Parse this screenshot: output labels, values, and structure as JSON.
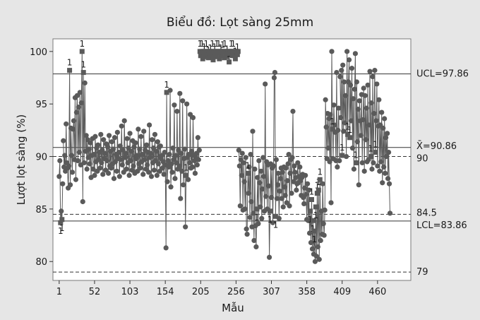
{
  "chart_data": {
    "type": "scatter",
    "title": "Biểu đồ: Lọt sàng 25mm",
    "xlabel": "Mẫu",
    "ylabel": "Lượt lọt sàng (%)",
    "xlim": [
      -8,
      508
    ],
    "ylim": [
      78.2,
      101.2
    ],
    "x_ticks": [
      1,
      52,
      103,
      154,
      205,
      256,
      307,
      358,
      409,
      460
    ],
    "y_ticks": [
      80,
      85,
      90,
      95,
      100
    ],
    "reference_lines": [
      {
        "value": 97.86,
        "label": "UCL=97.86",
        "style": "solid"
      },
      {
        "value": 90.86,
        "label": "X̄=90.86",
        "style": "solid"
      },
      {
        "value": 90,
        "label": "90",
        "style": "dashed"
      },
      {
        "value": 84.5,
        "label": "84.5",
        "style": "dashed"
      },
      {
        "value": 83.86,
        "label": "LCL=83.86",
        "style": "solid"
      },
      {
        "value": 79,
        "label": "79",
        "style": "dashed"
      }
    ],
    "out_of_control_marker": "1",
    "series_color": "#5a5a5a",
    "segments": [
      {
        "x_from": 1,
        "x_to": 6,
        "values": [
          88.1,
          89.6,
          83.7,
          84.8,
          84.0,
          87.4
        ],
        "flagged": [
          2,
          4
        ]
      },
      {
        "x_from": 7,
        "x_to": 50,
        "values": [
          91.5,
          89.0,
          90.1,
          88.6,
          93.1,
          89.4,
          88.9,
          87.0,
          89.1,
          98.2,
          87.3,
          92.7,
          90.1,
          88.5,
          92.6,
          93.4,
          89.7,
          95.6,
          87.8,
          94.2,
          95.8,
          89.6,
          94.7,
          90.4,
          96.1,
          89.2,
          95.1,
          100.0,
          85.7,
          98.0,
          89.4,
          97.0,
          90.5,
          92.0,
          88.8,
          91.6,
          89.9,
          90.7,
          89.3,
          91.3,
          88.0,
          90.1,
          91.7,
          88.8
        ],
        "flagged": [
          9,
          27,
          29
        ]
      },
      {
        "x_from": 51,
        "x_to": 150,
        "values": [
          90.2,
          88.2,
          91.9,
          89.5,
          90.8,
          88.6,
          91.1,
          89.7,
          90.4,
          88.9,
          92.1,
          89.4,
          90.6,
          88.3,
          91.6,
          89.8,
          90.3,
          88.7,
          91.2,
          89.6,
          90.9,
          88.4,
          92.0,
          89.1,
          90.5,
          88.9,
          91.4,
          89.3,
          90.7,
          87.9,
          91.8,
          89.5,
          90.2,
          88.6,
          92.3,
          89.8,
          90.4,
          88.1,
          91.0,
          89.7,
          92.9,
          89.2,
          90.6,
          88.5,
          93.4,
          89.9,
          90.3,
          88.8,
          91.7,
          89.4,
          90.8,
          88.2,
          92.2,
          89.6,
          90.5,
          88.7,
          91.5,
          89.1,
          90.9,
          88.4,
          91.3,
          89.8,
          90.1,
          88.6,
          92.6,
          89.3,
          90.7,
          88.9,
          91.9,
          89.5,
          90.2,
          88.3,
          92.4,
          89.7,
          90.6,
          88.8,
          91.1,
          89.2,
          90.4,
          88.5,
          93.0,
          89.9,
          90.3,
          88.1,
          91.6,
          89.4,
          90.8,
          88.7,
          92.1,
          89.6,
          90.5,
          88.2,
          91.4,
          89.3,
          90.9,
          88.6,
          91.0,
          89.8,
          90.1,
          88.9
        ],
        "flagged": []
      },
      {
        "x_from": 151,
        "x_to": 203,
        "values": [
          89.5,
          88.3,
          90.4,
          89.2,
          81.3,
          96.1,
          87.6,
          89.6,
          89.0,
          90.2,
          96.3,
          87.1,
          89.3,
          88.5,
          90.8,
          89.7,
          94.9,
          87.9,
          90.1,
          89.4,
          94.3,
          88.8,
          90.6,
          89.1,
          96.0,
          86.0,
          90.3,
          88.6,
          95.3,
          87.3,
          89.8,
          90.7,
          83.3,
          88.2,
          95.0,
          89.9,
          87.8,
          90.2,
          89.4,
          94.0,
          88.9,
          90.5,
          89.0,
          93.7,
          90.1,
          89.6,
          88.4,
          89.9,
          90.3,
          89.2,
          91.8,
          89.7,
          90.6
        ],
        "flagged": [
          5,
          33
        ]
      },
      {
        "x_from": 204,
        "x_to": 259,
        "values": [
          100.0,
          99.6,
          99.9,
          100.0,
          99.3,
          100.0,
          99.7,
          100.0,
          99.5,
          100.0,
          99.8,
          100.0,
          99.4,
          100.0,
          100.0,
          99.6,
          100.0,
          99.9,
          100.0,
          99.2,
          100.0,
          99.7,
          100.0,
          99.5,
          100.0,
          100.0,
          99.8,
          100.0,
          99.3,
          100.0,
          99.6,
          100.0,
          100.0,
          99.9,
          100.0,
          99.4,
          100.0,
          99.7,
          100.0,
          99.5,
          100.0,
          100.0,
          99.0,
          100.0,
          99.8,
          100.0,
          100.0,
          99.6,
          100.0,
          99.9,
          100.0,
          99.3,
          100.0,
          100.0,
          99.7,
          100.0
        ],
        "flagged": "all"
      },
      {
        "x_from": 260,
        "x_to": 330,
        "values": [
          90.6,
          89.1,
          85.3,
          89.7,
          88.2,
          90.3,
          84.9,
          89.4,
          87.6,
          85.0,
          89.9,
          83.1,
          82.6,
          88.4,
          86.5,
          89.0,
          84.2,
          90.2,
          85.7,
          83.3,
          92.4,
          84.6,
          82.0,
          88.8,
          83.4,
          81.4,
          85.0,
          88.0,
          83.6,
          89.6,
          87.5,
          85.2,
          88.6,
          84.1,
          86.9,
          89.9,
          88.1,
          84.8,
          96.9,
          86.2,
          89.5,
          85.0,
          89.2,
          87.2,
          80.4,
          84.8,
          89.3,
          86.1,
          88.9,
          83.7,
          89.1,
          97.5,
          98.0,
          84.3,
          89.7,
          86.0,
          87.3,
          88.4,
          84.1,
          86.7,
          87.9,
          88.9,
          86.0,
          88.5,
          85.2,
          89.0,
          87.1,
          86.3,
          88.9,
          85.6,
          87.7
        ],
        "flagged": [
          13,
          26,
          45,
          53
        ]
      },
      {
        "x_from": 331,
        "x_to": 405,
        "values": [
          89.3,
          90.2,
          85.3,
          88.4,
          89.7,
          86.5,
          89.9,
          94.3,
          87.6,
          89.1,
          88.5,
          88.0,
          86.8,
          87.4,
          89.4,
          87.5,
          88.1,
          89.0,
          87.7,
          86.3,
          88.0,
          88.3,
          86.1,
          85.5,
          87.0,
          88.2,
          86.4,
          84.0,
          87.4,
          83.9,
          86.8,
          82.7,
          84.8,
          81.8,
          85.9,
          81.2,
          83.9,
          80.7,
          82.9,
          80.0,
          85.2,
          80.5,
          86.5,
          81.4,
          86.8,
          80.2,
          87.8,
          82.0,
          84.8,
          82.6,
          87.4,
          83.6,
          82.5,
          84.9,
          95.4,
          92.8,
          89.8,
          94.1,
          90.8,
          93.6,
          89.5,
          94.0,
          85.6,
          100.0,
          92.6,
          89.8,
          94.9,
          93.0,
          92.3,
          89.6,
          98.0,
          89.0,
          92.5,
          94.6,
          89.6
        ],
        "flagged": [
          32,
          34,
          36,
          38,
          40,
          42,
          44,
          46,
          64
        ]
      },
      {
        "x_from": 406,
        "x_to": 478,
        "values": [
          97.6,
          93.7,
          98.2,
          90.1,
          98.7,
          92.4,
          97.1,
          93.2,
          95.8,
          90.0,
          100.0,
          92.1,
          97.1,
          99.2,
          91.8,
          96.8,
          93.4,
          98.4,
          90.8,
          95.5,
          88.8,
          96.4,
          99.8,
          89.4,
          97.1,
          91.4,
          94.5,
          87.3,
          95.3,
          93.4,
          92.0,
          95.9,
          89.4,
          93.5,
          96.5,
          88.6,
          95.8,
          91.6,
          94.6,
          89.5,
          96.8,
          89.7,
          93.0,
          98.1,
          90.0,
          95.1,
          88.8,
          97.6,
          89.4,
          94.1,
          98.2,
          90.4,
          93.4,
          96.9,
          89.1,
          92.9,
          95.4,
          88.6,
          93.0,
          89.5,
          94.2,
          87.5,
          92.7,
          89.0,
          93.6,
          88.4,
          91.8,
          90.0,
          92.2,
          87.9,
          90.4,
          87.4,
          84.6
        ],
        "flagged": [
          3,
          11,
          14,
          23,
          44,
          51
        ]
      }
    ]
  }
}
